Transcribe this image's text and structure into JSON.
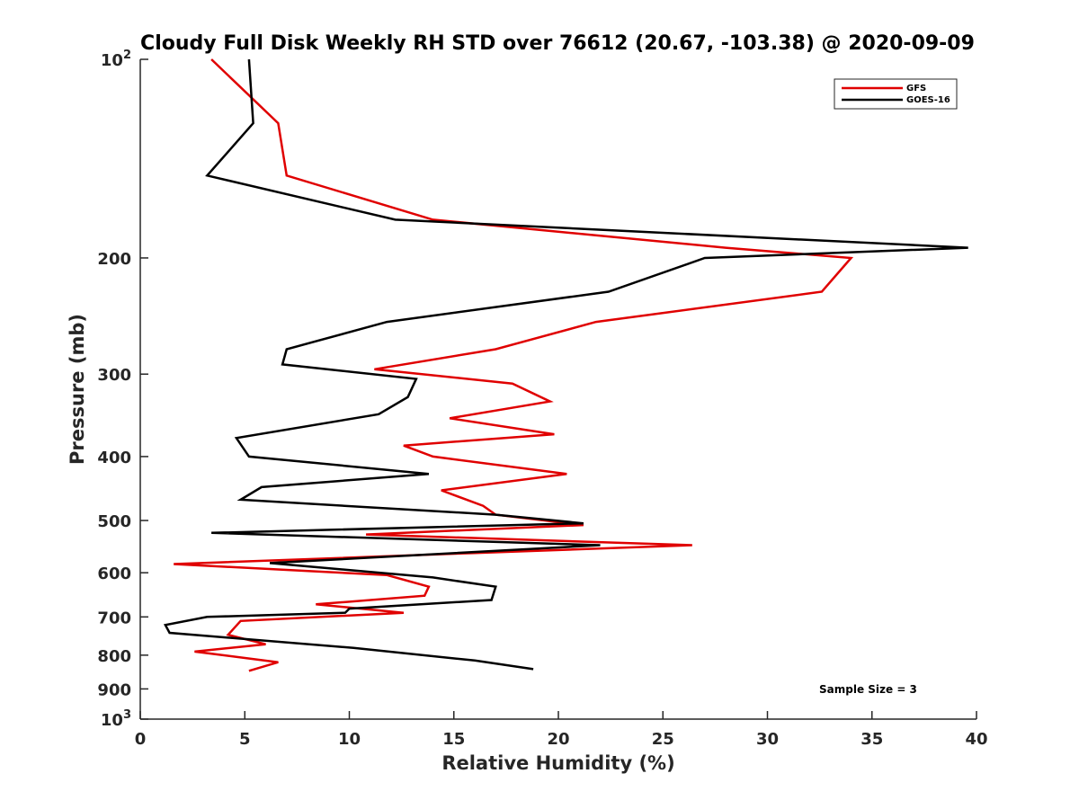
{
  "chart_data": {
    "type": "line",
    "title": "Cloudy Full Disk Weekly RH STD over 76612 (20.67, -103.38) @ 2020-09-09",
    "xlabel": "Relative Humidity (%)",
    "ylabel": "Pressure (mb)",
    "xlim": [
      0,
      40
    ],
    "ylim": [
      100,
      1000
    ],
    "yscale": "log",
    "y_reversed": true,
    "x_ticks": [
      "0",
      "5",
      "10",
      "15",
      "20",
      "25",
      "30",
      "35",
      "40"
    ],
    "y_ticks": [
      {
        "value": 100,
        "label": "10",
        "exp": "2"
      },
      {
        "value": 200,
        "label": "200",
        "exp": ""
      },
      {
        "value": 300,
        "label": "300",
        "exp": ""
      },
      {
        "value": 400,
        "label": "400",
        "exp": ""
      },
      {
        "value": 500,
        "label": "500",
        "exp": ""
      },
      {
        "value": 600,
        "label": "600",
        "exp": ""
      },
      {
        "value": 700,
        "label": "700",
        "exp": ""
      },
      {
        "value": 800,
        "label": "800",
        "exp": ""
      },
      {
        "value": 900,
        "label": "900",
        "exp": ""
      },
      {
        "value": 1000,
        "label": "10",
        "exp": "3"
      }
    ],
    "legend_position": "top-right",
    "annotation": "Sample Size = 3",
    "series": [
      {
        "name": "GFS",
        "color": "#e00000",
        "points": [
          [
            3.4,
            100
          ],
          [
            6.6,
            125
          ],
          [
            7.0,
            150
          ],
          [
            14.0,
            175
          ],
          [
            28.0,
            193
          ],
          [
            34.0,
            200
          ],
          [
            32.6,
            225
          ],
          [
            21.8,
            250
          ],
          [
            17.0,
            275
          ],
          [
            11.2,
            295
          ],
          [
            17.8,
            310
          ],
          [
            19.6,
            330
          ],
          [
            14.8,
            350
          ],
          [
            19.8,
            370
          ],
          [
            12.6,
            385
          ],
          [
            14.0,
            400
          ],
          [
            20.4,
            425
          ],
          [
            14.4,
            450
          ],
          [
            16.4,
            475
          ],
          [
            17.0,
            490
          ],
          [
            21.2,
            508
          ],
          [
            10.8,
            525
          ],
          [
            26.4,
            545
          ],
          [
            16.0,
            560
          ],
          [
            1.6,
            582
          ],
          [
            11.8,
            605
          ],
          [
            13.8,
            630
          ],
          [
            13.6,
            650
          ],
          [
            8.4,
            670
          ],
          [
            12.6,
            690
          ],
          [
            4.8,
            710
          ],
          [
            4.2,
            745
          ],
          [
            6.0,
            770
          ],
          [
            2.6,
            790
          ],
          [
            6.6,
            820
          ],
          [
            5.2,
            845
          ]
        ]
      },
      {
        "name": "GOES-16",
        "color": "#000000",
        "points": [
          [
            5.2,
            100
          ],
          [
            5.4,
            125
          ],
          [
            3.2,
            150
          ],
          [
            12.2,
            175
          ],
          [
            39.6,
            193
          ],
          [
            27.0,
            200
          ],
          [
            22.4,
            225
          ],
          [
            11.8,
            250
          ],
          [
            7.0,
            275
          ],
          [
            6.8,
            290
          ],
          [
            13.2,
            305
          ],
          [
            12.8,
            325
          ],
          [
            11.4,
            345
          ],
          [
            4.6,
            375
          ],
          [
            5.2,
            400
          ],
          [
            13.8,
            425
          ],
          [
            5.8,
            445
          ],
          [
            4.8,
            465
          ],
          [
            17.0,
            490
          ],
          [
            21.2,
            505
          ],
          [
            3.4,
            522
          ],
          [
            22.0,
            545
          ],
          [
            6.2,
            580
          ],
          [
            14.0,
            610
          ],
          [
            17.0,
            630
          ],
          [
            16.8,
            660
          ],
          [
            10.0,
            680
          ],
          [
            9.8,
            690
          ],
          [
            3.2,
            700
          ],
          [
            1.2,
            720
          ],
          [
            1.4,
            740
          ],
          [
            10.2,
            780
          ],
          [
            16.0,
            815
          ],
          [
            18.8,
            840
          ]
        ]
      }
    ]
  }
}
